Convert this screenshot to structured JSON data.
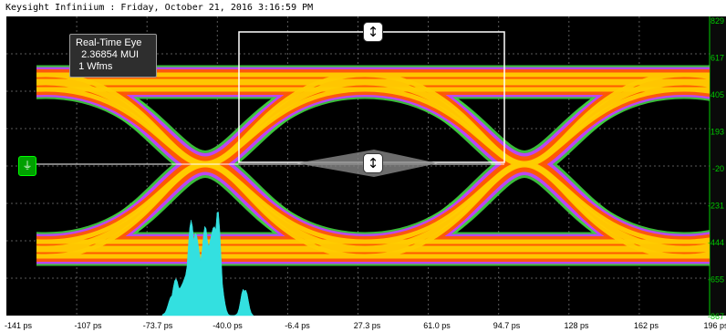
{
  "window": {
    "title": "Keysight Infiniium : Friday, October 21, 2016 3:16:59 PM"
  },
  "info_box": {
    "mode": "Real-Time Eye",
    "ui_count": "2.36854 MUI",
    "waveforms": "1 Wfms"
  },
  "y_axis": {
    "labels": [
      "829",
      "617",
      "405",
      "193",
      "-20",
      "-231",
      "-444",
      "-655",
      "-867"
    ],
    "color": "#00c800"
  },
  "x_axis": {
    "labels": [
      "-141 ps",
      "-107 ps",
      "-73.7 ps",
      "-40.0 ps",
      "-6.4 ps",
      "27.3 ps",
      "61.0 ps",
      "94.7 ps",
      "128 ps",
      "162 ps",
      "196 ps"
    ]
  },
  "icons": {
    "top_handle": "vertical-resize-icon",
    "center_handle": "vertical-resize-icon",
    "left_marker": "ground-reference-icon"
  },
  "colors": {
    "background": "#000000",
    "histogram": "#33e0e0",
    "eye_hot": "#ffcc00",
    "eye_mid": "#ff5a00",
    "eye_edge": "#c040ff",
    "eye_outer": "#40d040",
    "mask": "#ffffff"
  }
}
